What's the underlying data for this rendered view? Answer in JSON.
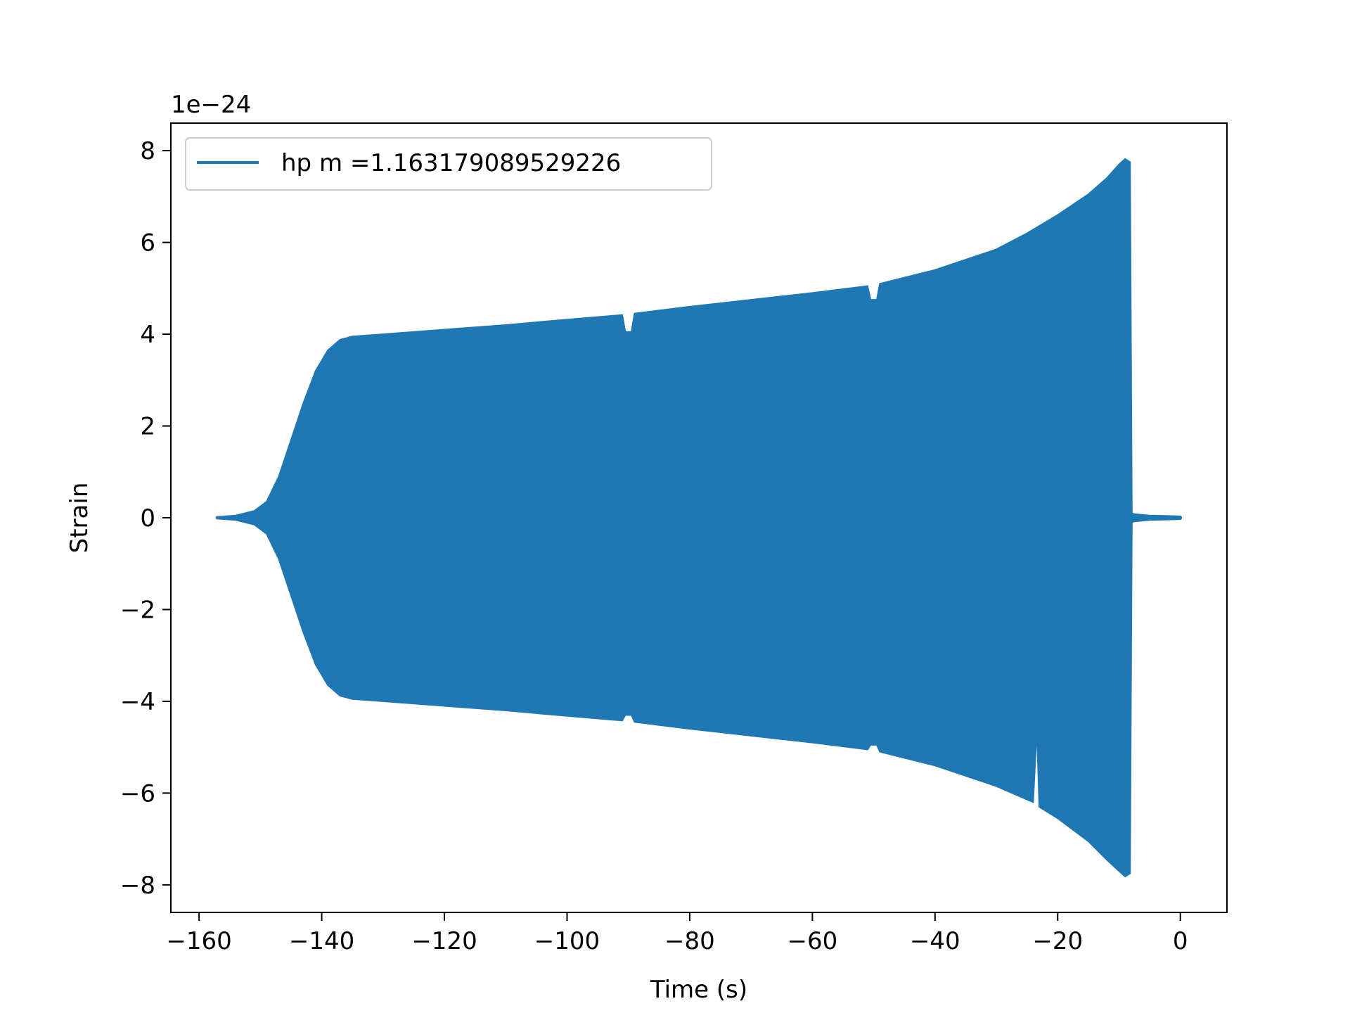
{
  "chart_data": {
    "type": "line",
    "title": "",
    "xlabel": "Time (s)",
    "ylabel": "Strain",
    "y_offset_text": "1e−24",
    "xlim": [
      -164.6,
      7.6
    ],
    "ylim": [
      -8.6,
      8.6
    ],
    "y_unit_scale": 1e-24,
    "x_ticks": [
      -160,
      -140,
      -120,
      -100,
      -80,
      -60,
      -40,
      -20,
      0
    ],
    "x_tick_labels": [
      "−160",
      "−140",
      "−120",
      "−100",
      "−80",
      "−60",
      "−40",
      "−20",
      "0"
    ],
    "y_ticks": [
      -8,
      -6,
      -4,
      -2,
      0,
      2,
      4,
      6,
      8
    ],
    "y_tick_labels": [
      "−8",
      "−6",
      "−4",
      "−2",
      "0",
      "2",
      "4",
      "6",
      "8"
    ],
    "grid": false,
    "legend": {
      "position": "upper-left"
    },
    "series": [
      {
        "name": "hp m =1.163179089529226",
        "color": "#1f77b4",
        "kind": "oscillating-envelope",
        "envelope_upper": [
          [
            -157,
            0.02
          ],
          [
            -154,
            0.05
          ],
          [
            -151,
            0.15
          ],
          [
            -149,
            0.35
          ],
          [
            -147,
            0.9
          ],
          [
            -145,
            1.7
          ],
          [
            -143,
            2.5
          ],
          [
            -141,
            3.2
          ],
          [
            -139,
            3.65
          ],
          [
            -137,
            3.88
          ],
          [
            -135,
            3.95
          ],
          [
            -130,
            4.0
          ],
          [
            -120,
            4.1
          ],
          [
            -110,
            4.2
          ],
          [
            -100,
            4.32
          ],
          [
            -91,
            4.42
          ],
          [
            -90.5,
            4.05
          ],
          [
            -89.5,
            4.05
          ],
          [
            -89,
            4.45
          ],
          [
            -80,
            4.6
          ],
          [
            -70,
            4.75
          ],
          [
            -60,
            4.9
          ],
          [
            -51,
            5.05
          ],
          [
            -50.5,
            4.75
          ],
          [
            -49.5,
            4.75
          ],
          [
            -49,
            5.1
          ],
          [
            -40,
            5.4
          ],
          [
            -30,
            5.85
          ],
          [
            -25,
            6.2
          ],
          [
            -20,
            6.6
          ],
          [
            -15,
            7.05
          ],
          [
            -12,
            7.4
          ],
          [
            -10,
            7.7
          ],
          [
            -9,
            7.82
          ],
          [
            -8.2,
            7.75
          ],
          [
            -7.9,
            0.1
          ],
          [
            -7.5,
            0.08
          ],
          [
            -5,
            0.05
          ],
          [
            -2,
            0.04
          ],
          [
            0,
            0.03
          ]
        ],
        "envelope_lower": [
          [
            -157,
            -0.02
          ],
          [
            -154,
            -0.05
          ],
          [
            -151,
            -0.15
          ],
          [
            -149,
            -0.35
          ],
          [
            -147,
            -0.9
          ],
          [
            -145,
            -1.7
          ],
          [
            -143,
            -2.5
          ],
          [
            -141,
            -3.2
          ],
          [
            -139,
            -3.65
          ],
          [
            -137,
            -3.88
          ],
          [
            -135,
            -3.95
          ],
          [
            -130,
            -4.0
          ],
          [
            -120,
            -4.1
          ],
          [
            -110,
            -4.2
          ],
          [
            -100,
            -4.32
          ],
          [
            -91,
            -4.42
          ],
          [
            -90.5,
            -4.3
          ],
          [
            -89.5,
            -4.3
          ],
          [
            -89,
            -4.45
          ],
          [
            -80,
            -4.6
          ],
          [
            -70,
            -4.75
          ],
          [
            -60,
            -4.9
          ],
          [
            -51,
            -5.05
          ],
          [
            -50.5,
            -4.95
          ],
          [
            -49.5,
            -4.95
          ],
          [
            -49,
            -5.1
          ],
          [
            -40,
            -5.4
          ],
          [
            -30,
            -5.85
          ],
          [
            -24,
            -6.2
          ],
          [
            -23.4,
            -4.6
          ],
          [
            -23.0,
            -6.3
          ],
          [
            -20,
            -6.55
          ],
          [
            -15,
            -7.05
          ],
          [
            -12,
            -7.45
          ],
          [
            -10,
            -7.7
          ],
          [
            -9,
            -7.82
          ],
          [
            -8.2,
            -7.75
          ],
          [
            -7.9,
            -0.1
          ],
          [
            -7.5,
            -0.08
          ],
          [
            -5,
            -0.05
          ],
          [
            -2,
            -0.04
          ],
          [
            0,
            -0.03
          ]
        ]
      }
    ]
  }
}
